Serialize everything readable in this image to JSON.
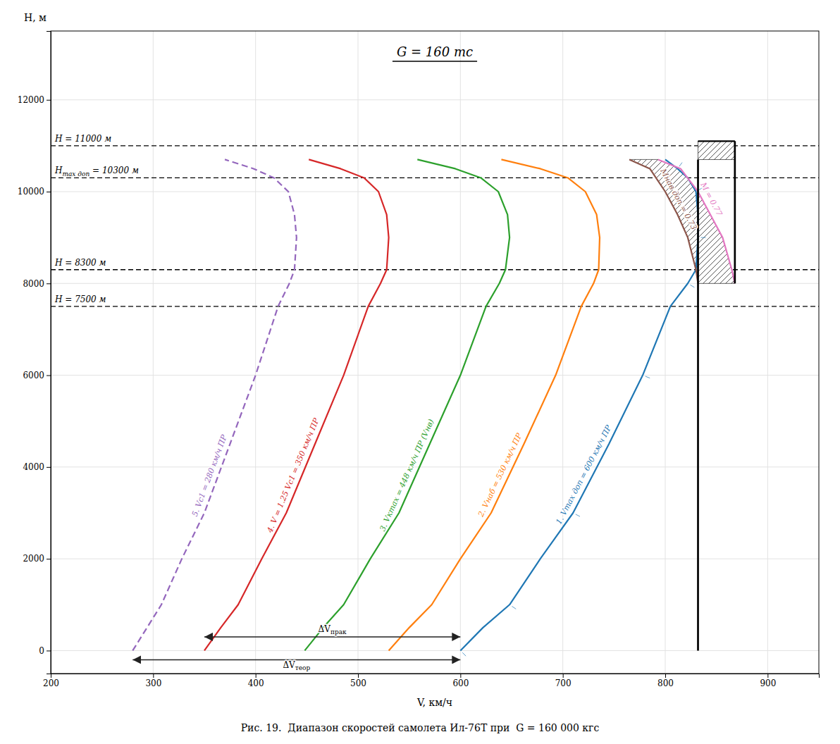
{
  "chart_data": {
    "type": "line",
    "title": "G = 160 тс",
    "caption": "Рис. 19.  Диапазон скоростей самолета Ил-76Т при  G = 160 000 кгс",
    "xlabel": "V, км/ч",
    "ylabel": "H, м",
    "xlim": [
      200,
      950
    ],
    "ylim": [
      -500,
      13500
    ],
    "xticks": [
      200,
      300,
      400,
      500,
      600,
      700,
      800,
      900
    ],
    "yticks": [
      0,
      2000,
      4000,
      6000,
      8000,
      10000,
      12000
    ],
    "grid": true,
    "series": [
      {
        "name": "1. Vmax доп = 600 км/ч ПР",
        "line_style": "hatched",
        "x": [
          600,
          622,
          648,
          678,
          710,
          745,
          778,
          805,
          822,
          830,
          832,
          832,
          830,
          822,
          812,
          800
        ],
        "values": [
          0,
          500,
          1000,
          2000,
          3000,
          4500,
          6000,
          7500,
          8000,
          8300,
          9000,
          9500,
          10000,
          10300,
          10500,
          10700
        ]
      },
      {
        "name": "2. Vнаб = 530 км/ч ПР",
        "line_style": "solid",
        "x": [
          530,
          550,
          572,
          600,
          630,
          662,
          693,
          718,
          730,
          735,
          736,
          733,
          722,
          705,
          678,
          640
        ],
        "values": [
          0,
          500,
          1000,
          2000,
          3000,
          4500,
          6000,
          7500,
          8000,
          8300,
          9000,
          9500,
          10000,
          10300,
          10500,
          10700
        ]
      },
      {
        "name": "3. Vкmax = 448 км/ч ПР (Vнв)",
        "line_style": "solid",
        "x": [
          448,
          466,
          486,
          512,
          540,
          570,
          600,
          625,
          638,
          644,
          648,
          646,
          637,
          620,
          595,
          558
        ],
        "values": [
          0,
          500,
          1000,
          2000,
          3000,
          4500,
          6000,
          7500,
          8000,
          8300,
          9000,
          9500,
          10000,
          10300,
          10500,
          10700
        ]
      },
      {
        "name": "4. V = 1.25 Vc1 = 350 км/ч ПР",
        "line_style": "solid",
        "x": [
          350,
          366,
          383,
          406,
          430,
          458,
          486,
          510,
          522,
          528,
          530,
          528,
          520,
          506,
          483,
          452
        ],
        "values": [
          0,
          500,
          1000,
          2000,
          3000,
          4500,
          6000,
          7500,
          8000,
          8300,
          9000,
          9500,
          10000,
          10300,
          10500,
          10700
        ]
      },
      {
        "name": "5. Vc1 = 280 км/ч ПР",
        "line_style": "dashed",
        "x": [
          280,
          294,
          308,
          328,
          350,
          375,
          400,
          422,
          433,
          438,
          440,
          438,
          432,
          418,
          398,
          370
        ],
        "values": [
          0,
          500,
          1000,
          2000,
          3000,
          4500,
          6000,
          7500,
          8000,
          8300,
          9000,
          9500,
          10000,
          10300,
          10500,
          10700
        ]
      },
      {
        "name": "Mнав доп = 0.73",
        "line_style": "solid",
        "x": [
          832,
          830,
          822,
          812,
          800,
          785,
          765
        ],
        "values": [
          8000,
          8300,
          9000,
          9500,
          10000,
          10500,
          10700
        ]
      },
      {
        "name": "M = 0.77",
        "line_style": "solid",
        "x": [
          868,
          865,
          856,
          844,
          832,
          815,
          793
        ],
        "values": [
          8000,
          8300,
          9000,
          9500,
          10000,
          10500,
          10700
        ]
      }
    ],
    "h_lines": [
      {
        "y": 11000,
        "label": "H = 11000 м"
      },
      {
        "y": 10300,
        "label": "H",
        "label_sub": "max доп",
        "label_end": " = 10300 м"
      },
      {
        "y": 8300,
        "label": "H = 8300 м"
      },
      {
        "y": 7500,
        "label": "H = 7500 м"
      }
    ],
    "vertical_lines": [
      {
        "x": 832,
        "y0": 0,
        "y1": 10700
      },
      {
        "x": 868,
        "y0": 8000,
        "y1": 11100
      }
    ],
    "hatch_region": {
      "x": [
        832,
        830,
        822,
        812,
        800,
        785,
        765,
        793,
        815,
        832,
        844,
        856,
        865,
        868
      ],
      "y": [
        8000,
        8300,
        9000,
        9500,
        10000,
        10500,
        10700,
        10700,
        10500,
        10000,
        9500,
        9000,
        8300,
        8000
      ]
    },
    "top_rect": {
      "x": [
        832,
        868
      ],
      "y": [
        10700,
        11100
      ]
    },
    "arrows": [
      {
        "x0": 350,
        "x1": 600,
        "y": 300,
        "label": "ΔV",
        "label_sub": "прак",
        "label_side": "above"
      },
      {
        "x0": 280,
        "x1": 600,
        "y": -200,
        "label": "ΔV",
        "label_sub": "теор",
        "label_side": "below"
      }
    ]
  }
}
